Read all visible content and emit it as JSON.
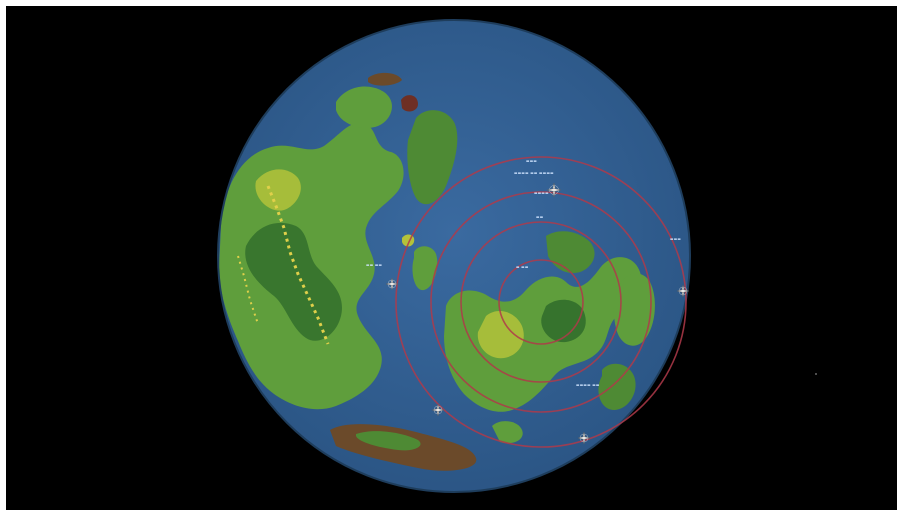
{
  "map": {
    "title": "",
    "projection": "azimuthal",
    "colors": {
      "background": "#000000",
      "ocean": "#2f5d8c",
      "lowland": "#5f9e3c",
      "highland": "#b3c23a",
      "forest": "#2f6b2a",
      "mountain": "#e0d04a",
      "rim": "#6b4a2a",
      "circles": "#b03a4a",
      "labels": "#cfe4ff"
    },
    "circles": [
      {
        "name": "outer-circle"
      },
      {
        "name": "middle-circle"
      },
      {
        "name": "inner-circle"
      },
      {
        "name": "core-circle"
      }
    ],
    "compass_roses": [
      {
        "name": "compass-rose-north"
      },
      {
        "name": "compass-rose-east"
      },
      {
        "name": "compass-rose-west"
      },
      {
        "name": "compass-rose-south"
      },
      {
        "name": "compass-rose-southwest"
      }
    ],
    "labels": {
      "ring_top": "▬▬▬",
      "ring_sub": "▬▬▬▬ ▬▬ ▬▬▬▬",
      "ring_mid": "▬▬▬▬",
      "ring_inner": "▬▬",
      "ocean_west": "▬▬ ▬▬",
      "sea_center": "▬ ▬▬",
      "sea_south": "▬▬▬▬ ▬▬",
      "east_label": "▬▬▬"
    }
  }
}
